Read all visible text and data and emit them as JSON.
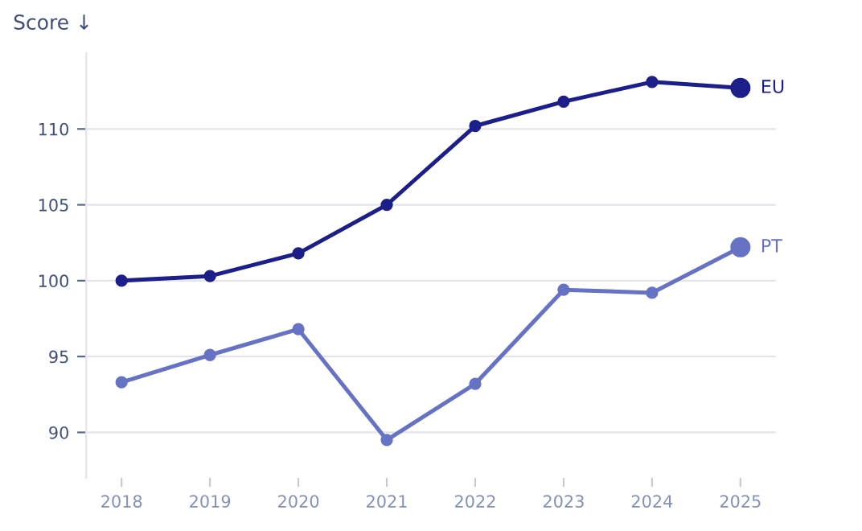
{
  "chart_data": {
    "type": "line",
    "title": "Score ↓",
    "x": [
      2018,
      2019,
      2020,
      2021,
      2022,
      2023,
      2024,
      2025
    ],
    "series": [
      {
        "name": "EU",
        "color": "#1c1f8a",
        "values": [
          100.0,
          100.3,
          101.8,
          105.0,
          110.2,
          111.8,
          113.1,
          112.7
        ]
      },
      {
        "name": "PT",
        "color": "#6673c4",
        "values": [
          93.3,
          95.1,
          96.8,
          89.5,
          93.2,
          99.4,
          99.2,
          102.2
        ]
      }
    ],
    "xlim": [
      2017.6,
      2025.4
    ],
    "xticks": [
      2018,
      2019,
      2020,
      2021,
      2022,
      2023,
      2024,
      2025
    ],
    "ylim": [
      87,
      115
    ],
    "yticks": [
      90,
      95,
      100,
      105,
      110
    ],
    "grid": "y",
    "legend": false,
    "marker": "circle",
    "line_style": "solid"
  }
}
